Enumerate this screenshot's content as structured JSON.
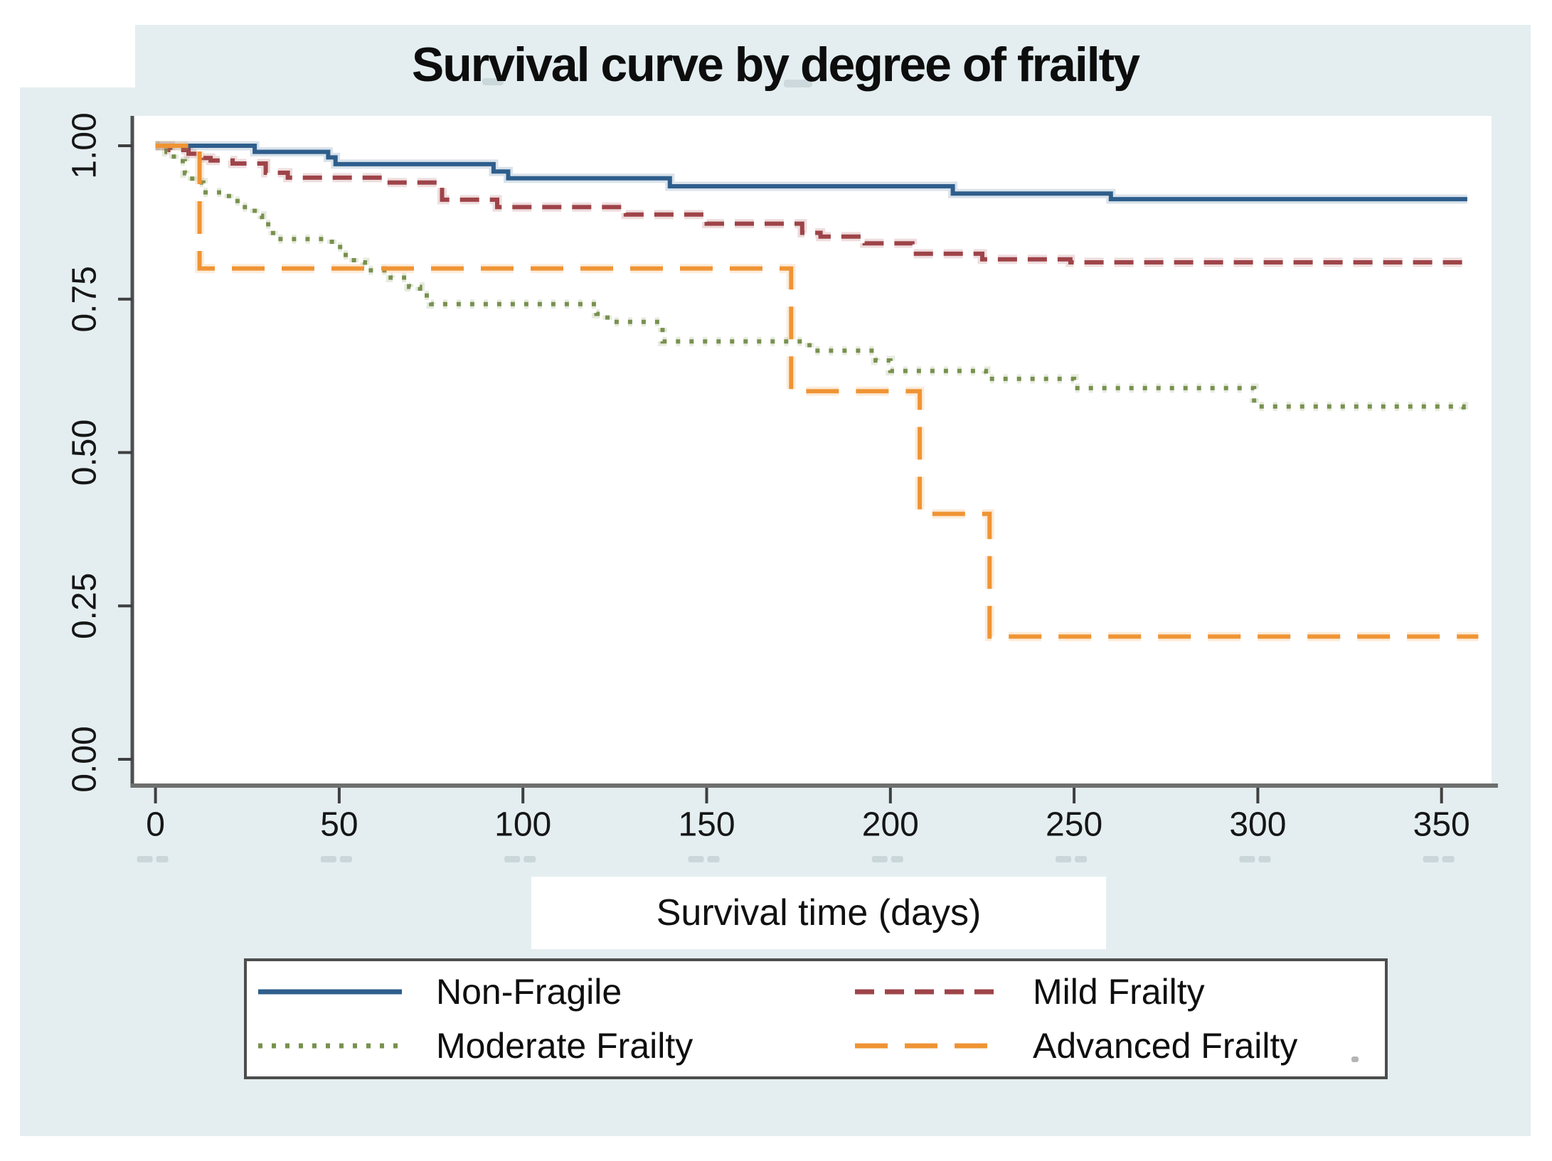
{
  "figure": {
    "title": "Survival curve by degree of frailty",
    "x_axis_label": "Survival time (days)"
  },
  "chart_data": {
    "type": "line",
    "variant": "kaplan_meier_step",
    "title": "Survival curve by degree of frailty",
    "xlabel": "Survival time (days)",
    "ylabel": "",
    "xlim": [
      0,
      365
    ],
    "ylim": [
      0.0,
      1.0
    ],
    "grid": false,
    "legend_position": "bottom",
    "x_ticks": [
      "0",
      "50",
      "100",
      "150",
      "200",
      "250",
      "300",
      "350"
    ],
    "x_tick_values": [
      0,
      50,
      100,
      150,
      200,
      250,
      300,
      350
    ],
    "y_ticks": [
      "1.00",
      "0.75",
      "0.50",
      "0.25",
      "0.00"
    ],
    "y_tick_values": [
      1.0,
      0.75,
      0.5,
      0.25,
      0.0
    ],
    "series": [
      {
        "name": "Non-Fragile",
        "color": "#2e5e8c",
        "line_style": "solid",
        "points": [
          [
            0,
            1.0
          ],
          [
            27,
            0.99
          ],
          [
            47,
            0.981
          ],
          [
            49,
            0.97
          ],
          [
            92,
            0.958
          ],
          [
            96,
            0.947
          ],
          [
            140,
            0.934
          ],
          [
            217,
            0.922
          ],
          [
            260,
            0.913
          ],
          [
            357,
            0.913
          ]
        ]
      },
      {
        "name": "Mild Frailty",
        "color": "#9e4449",
        "line_style": "dashed",
        "points": [
          [
            0,
            1.0
          ],
          [
            4,
            0.993
          ],
          [
            9,
            0.987
          ],
          [
            13,
            0.98
          ],
          [
            15,
            0.976
          ],
          [
            21,
            0.971
          ],
          [
            30,
            0.956
          ],
          [
            36,
            0.948
          ],
          [
            62,
            0.94
          ],
          [
            78,
            0.912
          ],
          [
            93,
            0.9
          ],
          [
            128,
            0.888
          ],
          [
            150,
            0.873
          ],
          [
            176,
            0.858
          ],
          [
            181,
            0.852
          ],
          [
            193,
            0.841
          ],
          [
            206,
            0.824
          ],
          [
            225,
            0.815
          ],
          [
            249,
            0.81
          ],
          [
            357,
            0.81
          ]
        ]
      },
      {
        "name": "Moderate Frailty",
        "color": "#78914f",
        "line_style": "dotted",
        "points": [
          [
            0,
            1.0
          ],
          [
            3,
            0.99
          ],
          [
            5,
            0.975
          ],
          [
            8,
            0.955
          ],
          [
            10,
            0.94
          ],
          [
            13,
            0.924
          ],
          [
            20,
            0.91
          ],
          [
            23,
            0.9
          ],
          [
            27,
            0.886
          ],
          [
            29,
            0.872
          ],
          [
            32,
            0.848
          ],
          [
            48,
            0.835
          ],
          [
            51,
            0.822
          ],
          [
            54,
            0.81
          ],
          [
            57,
            0.797
          ],
          [
            64,
            0.785
          ],
          [
            69,
            0.77
          ],
          [
            72,
            0.756
          ],
          [
            75,
            0.742
          ],
          [
            120,
            0.726
          ],
          [
            123,
            0.713
          ],
          [
            138,
            0.681
          ],
          [
            178,
            0.666
          ],
          [
            196,
            0.65
          ],
          [
            200,
            0.633
          ],
          [
            226,
            0.62
          ],
          [
            250,
            0.605
          ],
          [
            299,
            0.575
          ],
          [
            355,
            0.575
          ],
          [
            356,
            0.563
          ]
        ]
      },
      {
        "name": "Advanced Frailty",
        "color": "#ef9434",
        "line_style": "long_dash",
        "points": [
          [
            0,
            1.0
          ],
          [
            12,
            0.8
          ],
          [
            173,
            0.6
          ],
          [
            208,
            0.4
          ],
          [
            227,
            0.2
          ],
          [
            360,
            0.2
          ]
        ]
      }
    ]
  }
}
